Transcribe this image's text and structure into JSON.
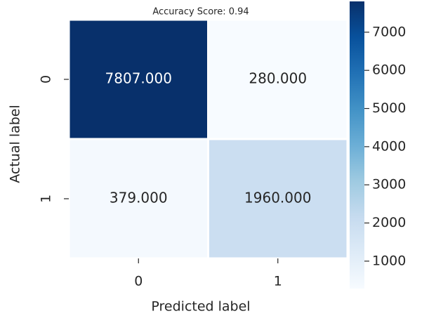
{
  "chart_data": {
    "type": "heatmap",
    "title": "Accuracy Score: 0.94",
    "xlabel": "Predicted label",
    "ylabel": "Actual label",
    "x_categories": [
      "0",
      "1"
    ],
    "y_categories": [
      "0",
      "1"
    ],
    "values": [
      [
        7807,
        280
      ],
      [
        379,
        1960
      ]
    ],
    "value_labels": [
      [
        "7807.000",
        "280.000"
      ],
      [
        "379.000",
        "1960.000"
      ]
    ],
    "colormap": "Blues",
    "clim": [
      280,
      7807
    ],
    "cticks": [
      1000,
      2000,
      3000,
      4000,
      5000,
      6000,
      7000
    ]
  }
}
